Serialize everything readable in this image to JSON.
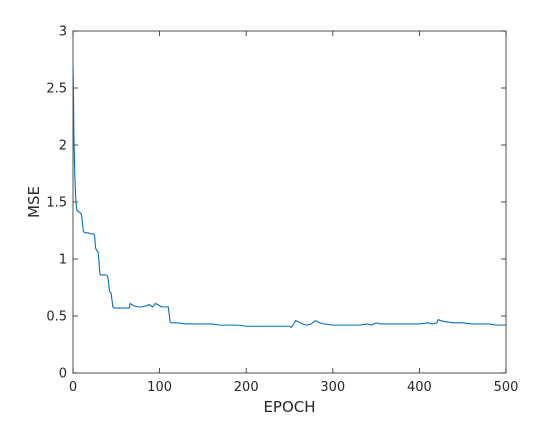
{
  "chart_data": {
    "type": "line",
    "title": "",
    "xlabel": "EPOCH",
    "ylabel": "MSE",
    "xlim": [
      0,
      500
    ],
    "ylim": [
      0,
      3
    ],
    "xticks": [
      0,
      100,
      200,
      300,
      400,
      500
    ],
    "yticks": [
      0,
      0.5,
      1,
      1.5,
      2,
      2.5,
      3
    ],
    "xtick_labels": [
      "0",
      "100",
      "200",
      "300",
      "400",
      "500"
    ],
    "ytick_labels": [
      "0",
      "0.5",
      "1",
      "1.5",
      "2",
      "2.5",
      "3"
    ],
    "grid": false,
    "legend": "none",
    "line_color": "#0072BD",
    "series": [
      {
        "x": [
          0,
          0.5,
          1,
          2,
          3,
          4,
          5,
          6,
          7,
          8,
          9,
          10,
          12,
          14,
          16,
          18,
          20,
          22,
          24,
          25,
          26,
          27,
          28,
          29,
          30,
          31,
          32,
          34,
          36,
          38,
          40,
          41,
          42,
          43,
          44,
          45,
          46,
          48,
          50,
          55,
          60,
          65,
          66,
          70,
          75,
          80,
          85,
          88,
          90,
          92,
          95,
          98,
          100,
          102,
          105,
          108,
          110,
          111,
          112,
          113,
          120,
          130,
          140,
          150,
          160,
          170,
          180,
          190,
          200,
          210,
          220,
          230,
          240,
          250,
          252,
          253,
          255,
          257,
          260,
          265,
          270,
          275,
          278,
          280,
          285,
          290,
          300,
          310,
          320,
          330,
          340,
          345,
          350,
          355,
          360,
          370,
          380,
          390,
          400,
          410,
          415,
          420,
          422,
          424,
          430,
          440,
          450,
          460,
          470,
          480,
          490,
          500
        ],
        "values": [
          2.7,
          2.5,
          2.1,
          1.75,
          1.55,
          1.45,
          1.42,
          1.42,
          1.41,
          1.41,
          1.4,
          1.38,
          1.24,
          1.23,
          1.23,
          1.23,
          1.22,
          1.22,
          1.22,
          1.2,
          1.1,
          1.08,
          1.07,
          1.06,
          0.98,
          0.87,
          0.86,
          0.86,
          0.86,
          0.86,
          0.85,
          0.8,
          0.72,
          0.71,
          0.7,
          0.64,
          0.58,
          0.57,
          0.57,
          0.57,
          0.57,
          0.57,
          0.61,
          0.59,
          0.58,
          0.58,
          0.59,
          0.6,
          0.59,
          0.58,
          0.61,
          0.6,
          0.59,
          0.58,
          0.58,
          0.58,
          0.58,
          0.52,
          0.45,
          0.44,
          0.44,
          0.43,
          0.43,
          0.43,
          0.43,
          0.42,
          0.42,
          0.42,
          0.41,
          0.41,
          0.41,
          0.41,
          0.41,
          0.41,
          0.4,
          0.41,
          0.43,
          0.46,
          0.45,
          0.43,
          0.42,
          0.43,
          0.45,
          0.46,
          0.44,
          0.43,
          0.42,
          0.42,
          0.42,
          0.42,
          0.43,
          0.42,
          0.44,
          0.43,
          0.43,
          0.43,
          0.43,
          0.43,
          0.43,
          0.44,
          0.43,
          0.44,
          0.47,
          0.46,
          0.45,
          0.44,
          0.44,
          0.43,
          0.43,
          0.43,
          0.42,
          0.42
        ]
      }
    ]
  }
}
